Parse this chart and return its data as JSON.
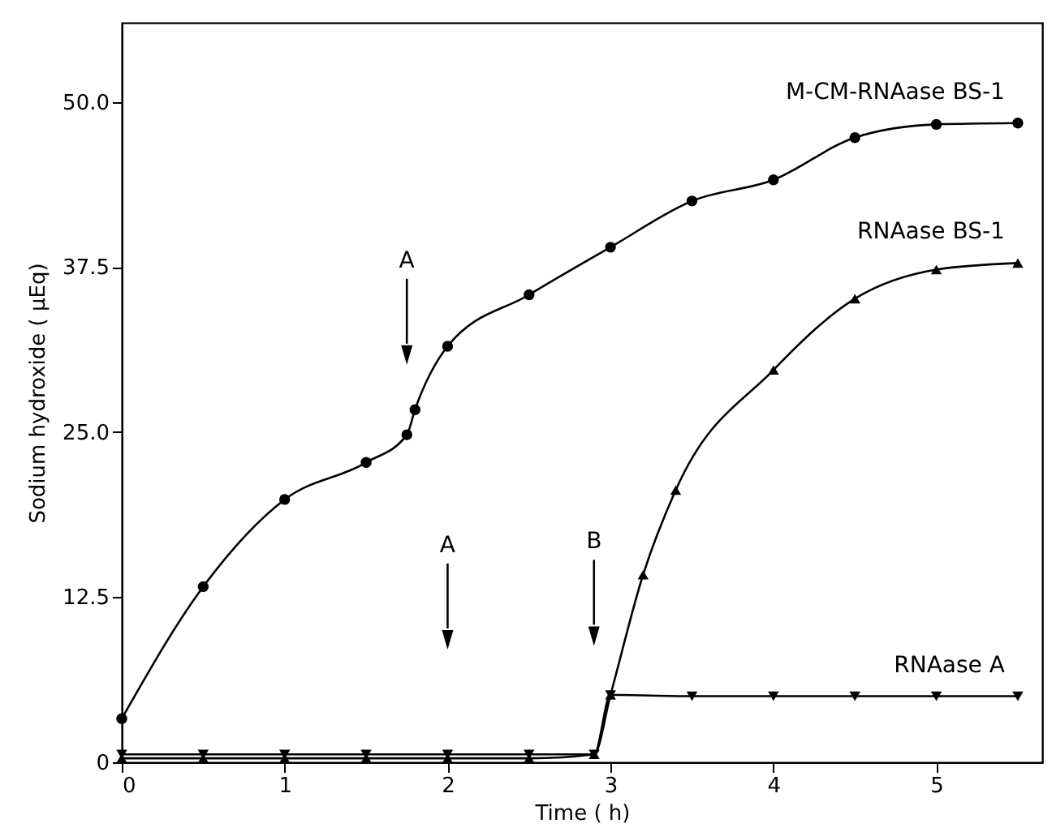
{
  "chart_data": {
    "type": "line",
    "xlabel": "Time ( h)",
    "ylabel": "Sodium hydroxide ( μEq)",
    "xlim": [
      0,
      5.65
    ],
    "xticks": [
      0,
      1,
      2,
      3,
      4,
      5
    ],
    "ylim": [
      0,
      56
    ],
    "yticks": [
      0,
      12.5,
      {
        "value": 25,
        "label": "25.0"
      },
      37.5,
      {
        "value": 50,
        "label": "50.0"
      }
    ],
    "grid": false,
    "legend": false,
    "series": [
      {
        "name": "M-CM-RNAase BS-1",
        "color": "#000000",
        "marker": "circle",
        "x": [
          0,
          0.5,
          1,
          1.5,
          1.75,
          1.8,
          2,
          2.5,
          3,
          3.5,
          4,
          4.5,
          5,
          5.5
        ],
        "values": [
          3.3,
          13.3,
          19.9,
          22.7,
          24.8,
          26.7,
          31.5,
          35.4,
          39.0,
          42.5,
          44.1,
          47.3,
          48.3,
          48.4
        ]
      },
      {
        "name": "RNAase BS-1",
        "color": "#000000",
        "marker": "triangle",
        "x": [
          0,
          0.5,
          1,
          1.5,
          2,
          2.5,
          2.9,
          3.0,
          3.2,
          3.4,
          4,
          4.5,
          5,
          5.5
        ],
        "values": [
          0.3,
          0.3,
          0.3,
          0.3,
          0.3,
          0.3,
          0.6,
          5.1,
          14.2,
          20.6,
          29.7,
          35.1,
          37.3,
          37.8
        ]
      },
      {
        "name": "RNAase A",
        "color": "#000000",
        "marker": "triangle-down",
        "x": [
          0,
          0.5,
          1,
          1.5,
          2,
          2.5,
          2.9,
          3.0,
          3.5,
          4,
          4.5,
          5,
          5.5
        ],
        "values": [
          0.6,
          0.6,
          0.6,
          0.6,
          0.6,
          0.6,
          0.6,
          5.1,
          5.0,
          5.0,
          5.0,
          5.0,
          5.0
        ]
      }
    ],
    "annotations": [
      "A",
      "A",
      "B"
    ]
  }
}
